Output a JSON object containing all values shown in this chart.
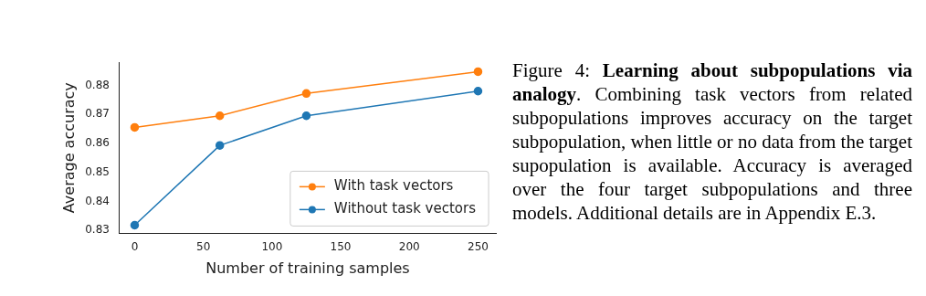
{
  "chart_data": {
    "type": "line",
    "xlabel": "Number of training samples",
    "ylabel": "Average accuracy",
    "x": [
      0,
      62,
      125,
      250
    ],
    "series": [
      {
        "name": "With task vectors",
        "color": "#ff7f0e",
        "values": [
          0.8655,
          0.8695,
          0.8772,
          0.8847
        ]
      },
      {
        "name": "Without task vectors",
        "color": "#1f77b4",
        "values": [
          0.8318,
          0.8593,
          0.8695,
          0.878
        ]
      }
    ],
    "xlim": [
      -11,
      263
    ],
    "xticks": [
      0,
      50,
      100,
      150,
      200,
      250
    ],
    "ylim": [
      0.829,
      0.888
    ],
    "yticks": [
      0.83,
      0.84,
      0.85,
      0.86,
      0.87,
      0.88
    ],
    "marker": "circle",
    "line_style": "solid",
    "grid": false,
    "legend": "bottom right",
    "annotations": [
      "Figure 4:",
      "Learning about subpopulations via analogy",
      ". Combining task vectors from related subpopulations improves accuracy on the target subpopulation, when little or no data from the target supopulation is available.  Accuracy is averaged over the four target subpopulations and three models. Additional details are in Appendix E.3."
    ]
  }
}
